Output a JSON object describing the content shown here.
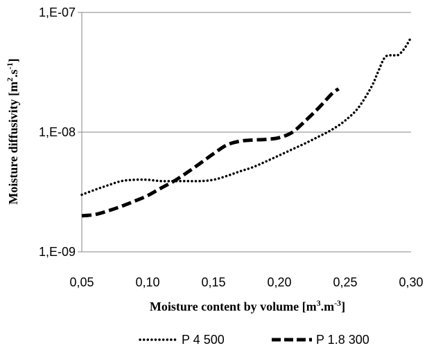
{
  "chart_data": {
    "type": "line",
    "xlabel": {
      "prefix": "Moisture content by volume [m",
      "sup1": "3",
      "mid": ".m",
      "sup2": "-3",
      "suffix": "]"
    },
    "ylabel": {
      "prefix": "Moisture diffusivity  [m",
      "sup1": "2",
      "mid": ".s",
      "sup2": "-1",
      "suffix": "]"
    },
    "xlim": [
      0.05,
      0.3
    ],
    "ylim": [
      1e-09,
      1e-07
    ],
    "yscale": "log",
    "x_ticks": [
      {
        "value": 0.05,
        "label": "0,05"
      },
      {
        "value": 0.1,
        "label": "0,10"
      },
      {
        "value": 0.15,
        "label": "0,15"
      },
      {
        "value": 0.2,
        "label": "0,20"
      },
      {
        "value": 0.25,
        "label": "0,25"
      },
      {
        "value": 0.3,
        "label": "0,30"
      }
    ],
    "y_ticks": [
      {
        "value": 1e-09,
        "label": "1,E-09"
      },
      {
        "value": 1e-08,
        "label": "1,E-08"
      },
      {
        "value": 1e-07,
        "label": "1,E-07"
      }
    ],
    "grid": "horizontal",
    "legend_position": "bottom",
    "series": [
      {
        "name": "P 4 500",
        "style": "dotted",
        "color": "#000000",
        "x": [
          0.05,
          0.06,
          0.07,
          0.08,
          0.09,
          0.1,
          0.11,
          0.12,
          0.13,
          0.14,
          0.15,
          0.16,
          0.17,
          0.18,
          0.19,
          0.2,
          0.21,
          0.22,
          0.23,
          0.24,
          0.25,
          0.26,
          0.27,
          0.275,
          0.28,
          0.285,
          0.29,
          0.295,
          0.3
        ],
        "y": [
          3e-09,
          3.3e-09,
          3.6e-09,
          3.9e-09,
          4e-09,
          4e-09,
          3.9e-09,
          3.9e-09,
          3.9e-09,
          3.9e-09,
          4e-09,
          4.3e-09,
          4.7e-09,
          5.1e-09,
          5.7e-09,
          6.4e-09,
          7.2e-09,
          8.1e-09,
          9.2e-09,
          1.05e-08,
          1.25e-08,
          1.6e-08,
          2.4e-08,
          3.2e-08,
          4.2e-08,
          4.4e-08,
          4.4e-08,
          5e-08,
          6.2e-08
        ]
      },
      {
        "name": "P 1.8 300",
        "style": "dashed",
        "color": "#000000",
        "x": [
          0.05,
          0.06,
          0.07,
          0.08,
          0.09,
          0.1,
          0.11,
          0.12,
          0.13,
          0.14,
          0.15,
          0.16,
          0.17,
          0.18,
          0.19,
          0.2,
          0.21,
          0.22,
          0.23,
          0.24,
          0.245
        ],
        "y": [
          2e-09,
          2.05e-09,
          2.2e-09,
          2.4e-09,
          2.65e-09,
          2.95e-09,
          3.4e-09,
          3.9e-09,
          4.6e-09,
          5.5e-09,
          6.6e-09,
          7.8e-09,
          8.4e-09,
          8.6e-09,
          8.7e-09,
          9e-09,
          1e-08,
          1.25e-08,
          1.6e-08,
          2.1e-08,
          2.3e-08
        ]
      }
    ]
  }
}
